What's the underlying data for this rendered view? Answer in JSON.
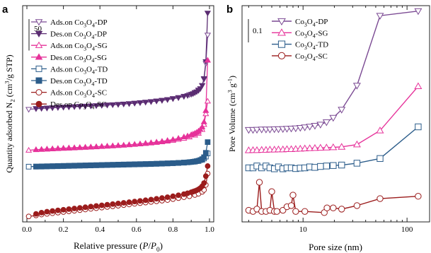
{
  "chart_data": [
    {
      "panel": "a",
      "type": "line",
      "xlabel": "Relative pressure (P/P0)",
      "ylabel": "Quantity adsorbed N2 (cm3/g STP)",
      "xlim": [
        0.0,
        1.0
      ],
      "x_ticks": [
        "0.0",
        "0.2",
        "0.4",
        "0.6",
        "0.8",
        "1.0"
      ],
      "y_ticks": [],
      "scale_bar_label": "50",
      "scale_bar_value": 50,
      "ylim": [
        0,
        330
      ],
      "grid": false,
      "legend_position": "top-left",
      "series": [
        {
          "name": "Ads.on Co3O4-DP",
          "color": "#7b4a93",
          "marker": "triangle-down",
          "fill": "open",
          "x": [
            0.01,
            0.05,
            0.08,
            0.11,
            0.14,
            0.17,
            0.2,
            0.23,
            0.26,
            0.29,
            0.32,
            0.35,
            0.38,
            0.41,
            0.44,
            0.47,
            0.5,
            0.53,
            0.56,
            0.59,
            0.62,
            0.65,
            0.68,
            0.71,
            0.74,
            0.77,
            0.8,
            0.83,
            0.86,
            0.89,
            0.92,
            0.94,
            0.96,
            0.97,
            0.98,
            0.99
          ],
          "y": [
            172,
            173,
            173.5,
            174,
            174.5,
            175,
            175.5,
            176,
            176.4,
            176.8,
            177.2,
            177.6,
            178,
            178.5,
            179,
            179.5,
            180,
            180.6,
            181.2,
            182,
            182.8,
            183.6,
            184.5,
            185.5,
            186.6,
            187.8,
            189.3,
            191,
            193,
            195.5,
            199,
            203,
            210,
            220,
            245,
            290
          ]
        },
        {
          "name": "Des.on Co3O4-DP",
          "color": "#5b2d72",
          "marker": "triangle-down",
          "fill": "filled",
          "x": [
            0.99,
            0.98,
            0.97,
            0.96,
            0.95,
            0.94,
            0.93,
            0.92,
            0.91,
            0.9,
            0.88,
            0.86,
            0.83,
            0.8,
            0.77,
            0.74,
            0.71,
            0.68,
            0.65,
            0.62,
            0.59,
            0.56,
            0.53,
            0.5,
            0.47,
            0.44,
            0.41,
            0.38,
            0.35,
            0.32,
            0.29,
            0.26,
            0.23,
            0.2,
            0.17,
            0.14,
            0.11,
            0.08,
            0.05
          ],
          "y": [
            325,
            248,
            221,
            210,
            205,
            202,
            200,
            198.5,
            197,
            196,
            194,
            192.5,
            190.5,
            189,
            187.5,
            186.2,
            185.2,
            184.2,
            183.4,
            182.6,
            181.8,
            181.1,
            180.5,
            179.9,
            179.4,
            178.9,
            178.4,
            178,
            177.5,
            177.1,
            176.7,
            176.3,
            175.9,
            175.5,
            175.1,
            174.7,
            174.3,
            173.8,
            173.4
          ]
        },
        {
          "name": "Ads.on Co3O4-SG",
          "color": "#e6329a",
          "marker": "triangle-up",
          "fill": "open",
          "x": [
            0.01,
            0.05,
            0.08,
            0.11,
            0.14,
            0.17,
            0.2,
            0.23,
            0.26,
            0.29,
            0.32,
            0.35,
            0.38,
            0.41,
            0.44,
            0.47,
            0.5,
            0.53,
            0.56,
            0.59,
            0.62,
            0.65,
            0.68,
            0.71,
            0.74,
            0.77,
            0.8,
            0.83,
            0.86,
            0.89,
            0.92,
            0.94,
            0.96,
            0.97,
            0.98,
            0.99
          ],
          "y": [
            107,
            108,
            108.5,
            109,
            109.5,
            110,
            110.4,
            110.8,
            111.2,
            111.6,
            112,
            112.4,
            112.8,
            113.2,
            113.6,
            114.1,
            114.6,
            115.1,
            115.7,
            116.3,
            117,
            117.7,
            118.5,
            119.4,
            120.4,
            121.5,
            122.8,
            124.3,
            126,
            128,
            131,
            134,
            140,
            148,
            165,
            185
          ]
        },
        {
          "name": "Des.on Co3O4-SG",
          "color": "#e6329a",
          "marker": "triangle-up",
          "fill": "filled",
          "x": [
            0.99,
            0.98,
            0.97,
            0.96,
            0.95,
            0.94,
            0.93,
            0.92,
            0.91,
            0.9,
            0.88,
            0.86,
            0.83,
            0.8,
            0.77,
            0.74,
            0.71,
            0.68,
            0.65,
            0.62,
            0.59,
            0.56,
            0.53,
            0.5,
            0.47,
            0.44,
            0.41,
            0.38,
            0.35,
            0.32,
            0.29,
            0.26,
            0.23,
            0.2,
            0.17,
            0.14,
            0.11,
            0.08,
            0.05
          ],
          "y": [
            250,
            170,
            152,
            144,
            140,
            137.5,
            135.5,
            134,
            132.8,
            131.8,
            129.8,
            128.2,
            126,
            124.2,
            122.6,
            121.3,
            120.1,
            119.1,
            118.1,
            117.2,
            116.4,
            115.7,
            115,
            114.4,
            113.9,
            113.4,
            112.9,
            112.4,
            111.9,
            111.5,
            111.1,
            110.7,
            110.3,
            109.9,
            109.5,
            109.1,
            108.7,
            108.3,
            107.9
          ]
        },
        {
          "name": "Ads.on Co3O4-TD",
          "color": "#2b5c8a",
          "marker": "square",
          "fill": "open",
          "x": [
            0.01,
            0.05,
            0.08,
            0.11,
            0.14,
            0.17,
            0.2,
            0.23,
            0.26,
            0.29,
            0.32,
            0.35,
            0.38,
            0.41,
            0.44,
            0.47,
            0.5,
            0.53,
            0.56,
            0.59,
            0.62,
            0.65,
            0.68,
            0.71,
            0.74,
            0.77,
            0.8,
            0.83,
            0.86,
            0.89,
            0.92,
            0.94,
            0.96,
            0.97,
            0.98,
            0.99
          ],
          "y": [
            81,
            81.3,
            81.5,
            81.7,
            81.9,
            82.1,
            82.3,
            82.5,
            82.7,
            82.9,
            83.1,
            83.3,
            83.5,
            83.7,
            83.9,
            84.1,
            84.3,
            84.5,
            84.7,
            84.9,
            85.1,
            85.3,
            85.5,
            85.8,
            86.1,
            86.4,
            86.7,
            87.1,
            87.6,
            88.2,
            89,
            90,
            92,
            94,
            97,
            102
          ]
        },
        {
          "name": "Des.on Co3O4-TD",
          "color": "#2b5c8a",
          "marker": "square",
          "fill": "filled",
          "x": [
            0.99,
            0.98,
            0.97,
            0.96,
            0.95,
            0.94,
            0.93,
            0.92,
            0.91,
            0.9,
            0.88,
            0.86,
            0.83,
            0.8,
            0.77,
            0.74,
            0.71,
            0.68,
            0.65,
            0.62,
            0.59,
            0.56,
            0.53,
            0.5,
            0.47,
            0.44,
            0.41,
            0.38,
            0.35,
            0.32,
            0.29,
            0.26,
            0.23,
            0.2,
            0.17,
            0.14,
            0.11,
            0.08,
            0.05
          ],
          "y": [
            120,
            103,
            96,
            93,
            91.5,
            90.5,
            89.8,
            89.2,
            88.8,
            88.4,
            87.8,
            87.3,
            86.8,
            86.4,
            86,
            85.7,
            85.4,
            85.1,
            84.9,
            84.7,
            84.5,
            84.3,
            84.1,
            83.9,
            83.7,
            83.5,
            83.3,
            83.1,
            82.9,
            82.7,
            82.5,
            82.3,
            82.1,
            81.9,
            81.7,
            81.5,
            81.3,
            81.1,
            81
          ]
        },
        {
          "name": "Ads.on Co3O4-SC",
          "color": "#9b1c1c",
          "marker": "circle",
          "fill": "open",
          "x": [
            0.01,
            0.05,
            0.08,
            0.11,
            0.14,
            0.17,
            0.2,
            0.23,
            0.26,
            0.29,
            0.32,
            0.35,
            0.38,
            0.41,
            0.44,
            0.47,
            0.5,
            0.53,
            0.56,
            0.59,
            0.62,
            0.65,
            0.68,
            0.71,
            0.74,
            0.77,
            0.8,
            0.83,
            0.86,
            0.89,
            0.92,
            0.94,
            0.96,
            0.97,
            0.98,
            0.99
          ],
          "y": [
            2,
            3.5,
            5,
            6,
            7,
            8,
            9,
            10,
            11,
            12,
            13,
            14,
            15,
            16,
            17,
            18,
            19,
            20,
            21,
            22,
            23,
            24,
            25,
            26,
            27,
            28,
            29.5,
            31,
            32.5,
            34,
            36,
            38,
            41,
            44,
            52,
            70
          ]
        },
        {
          "name": "Des.on Co3O4-SC",
          "color": "#9b1c1c",
          "marker": "circle",
          "fill": "filled",
          "x": [
            0.99,
            0.98,
            0.97,
            0.96,
            0.95,
            0.94,
            0.93,
            0.92,
            0.91,
            0.9,
            0.88,
            0.86,
            0.83,
            0.8,
            0.77,
            0.74,
            0.71,
            0.68,
            0.65,
            0.62,
            0.59,
            0.56,
            0.53,
            0.5,
            0.47,
            0.44,
            0.41,
            0.38,
            0.35,
            0.32,
            0.29,
            0.26,
            0.23,
            0.2,
            0.17,
            0.14,
            0.11,
            0.08,
            0.05
          ],
          "y": [
            82,
            66,
            55,
            50,
            47,
            45,
            43.5,
            42.3,
            41.3,
            40.4,
            38.8,
            37.4,
            35.6,
            34,
            32.5,
            31.2,
            30,
            28.8,
            27.7,
            26.6,
            25.6,
            24.6,
            23.6,
            22.6,
            21.6,
            20.6,
            19.6,
            18.6,
            17.6,
            16.6,
            15.6,
            14.6,
            13.6,
            12.6,
            11.6,
            10.6,
            9.5,
            8,
            6
          ]
        }
      ]
    },
    {
      "panel": "b",
      "type": "line",
      "xlabel": "Pore size (nm)",
      "ylabel": "Pore Volume (cm3 g-1)",
      "x_scale": "log",
      "xlim": [
        2.8,
        150
      ],
      "x_ticks": [
        "10",
        "100"
      ],
      "y_ticks": [],
      "scale_bar_label": "0.1",
      "scale_bar_value": 0.1,
      "ylim": [
        0,
        0.91
      ],
      "grid": false,
      "legend_position": "top-left",
      "series": [
        {
          "name": "Co3O4-DP",
          "color": "#7b4a93",
          "marker": "triangle-down",
          "fill": "open",
          "x": [
            3.0,
            3.3,
            3.6,
            4.0,
            4.4,
            4.8,
            5.3,
            5.8,
            6.4,
            7.0,
            7.7,
            8.5,
            9.4,
            10.4,
            11.6,
            13.0,
            14.7,
            16.8,
            19.5,
            23.5,
            33,
            55,
            128
          ],
          "y": [
            0.395,
            0.395,
            0.396,
            0.397,
            0.397,
            0.397,
            0.398,
            0.398,
            0.399,
            0.4,
            0.401,
            0.402,
            0.404,
            0.406,
            0.409,
            0.413,
            0.418,
            0.428,
            0.447,
            0.482,
            0.585,
            0.885,
            0.905
          ]
        },
        {
          "name": "Co3O4-SG",
          "color": "#e6329a",
          "marker": "triangle-up",
          "fill": "open",
          "x": [
            3.0,
            3.3,
            3.6,
            4.0,
            4.4,
            4.8,
            5.3,
            5.8,
            6.4,
            7.0,
            7.7,
            8.5,
            9.4,
            10.4,
            11.6,
            13.0,
            14.7,
            16.8,
            19.5,
            23.5,
            33,
            55,
            128
          ],
          "y": [
            0.307,
            0.308,
            0.308,
            0.309,
            0.309,
            0.31,
            0.31,
            0.311,
            0.311,
            0.312,
            0.312,
            0.313,
            0.314,
            0.315,
            0.316,
            0.317,
            0.318,
            0.319,
            0.32,
            0.322,
            0.332,
            0.392,
            0.582
          ]
        },
        {
          "name": "Co3O4-TD",
          "color": "#2b5c8a",
          "marker": "square",
          "fill": "open",
          "x": [
            3.0,
            3.3,
            3.6,
            4.0,
            4.4,
            4.8,
            5.3,
            5.8,
            6.4,
            7.0,
            7.7,
            8.5,
            9.4,
            10.4,
            11.6,
            13.0,
            14.7,
            16.8,
            19.5,
            23.5,
            33,
            55,
            128
          ],
          "y": [
            0.232,
            0.232,
            0.24,
            0.232,
            0.24,
            0.232,
            0.228,
            0.236,
            0.228,
            0.232,
            0.232,
            0.229,
            0.231,
            0.232,
            0.236,
            0.234,
            0.238,
            0.24,
            0.242,
            0.244,
            0.252,
            0.272,
            0.408
          ]
        },
        {
          "name": "Co3O4-SC",
          "color": "#9b1c1c",
          "marker": "circle",
          "fill": "open",
          "x": [
            3.0,
            3.3,
            3.6,
            3.8,
            4.0,
            4.4,
            4.8,
            5.0,
            5.3,
            5.6,
            6.4,
            7.0,
            7.7,
            8.0,
            8.5,
            10.4,
            16.0,
            17.0,
            19.5,
            23.5,
            33,
            55,
            128
          ],
          "y": [
            0.05,
            0.045,
            0.055,
            0.17,
            0.045,
            0.045,
            0.05,
            0.13,
            0.045,
            0.045,
            0.05,
            0.065,
            0.07,
            0.115,
            0.045,
            0.045,
            0.04,
            0.06,
            0.06,
            0.055,
            0.07,
            0.1,
            0.11
          ]
        }
      ]
    }
  ]
}
